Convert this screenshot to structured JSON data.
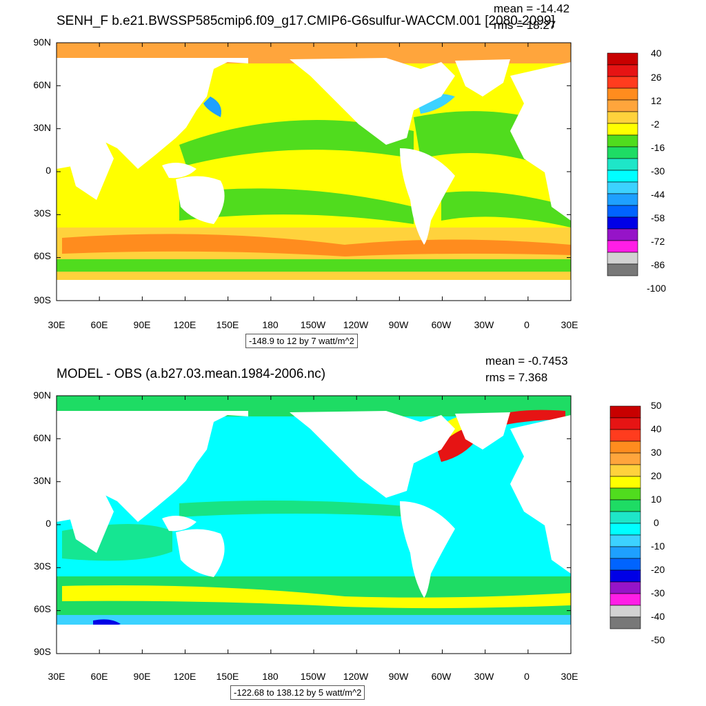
{
  "panels": [
    {
      "title": "SENH_F b.e21.BWSSP585cmip6.f09_g17.CMIP6-G6sulfur-WACCM.001 [2080-2099]",
      "mean_text": "mean = -14.42",
      "rms_text": "rms = 18.27",
      "info_text": "-148.9 to 12 by 7 watt/m^2",
      "lat_ticks": [
        "90N",
        "60N",
        "30N",
        "0",
        "30S",
        "60S",
        "90S"
      ],
      "lon_ticks": [
        "30E",
        "60E",
        "90E",
        "120E",
        "150E",
        "180",
        "150W",
        "120W",
        "90W",
        "60W",
        "30W",
        "0",
        "30E"
      ],
      "colorbar_labels": [
        "40",
        "26",
        "12",
        "-2",
        "-16",
        "-30",
        "-44",
        "-58",
        "-72",
        "-86",
        "-100"
      ],
      "colorbar_colors": [
        "#c80000",
        "#e61414",
        "#ff3c1e",
        "#ff8c1e",
        "#ffa53c",
        "#ffd23c",
        "#ffff00",
        "#50dc1e",
        "#1edc64",
        "#1ee6c8",
        "#00ffff",
        "#3cd2ff",
        "#1ea0ff",
        "#0064ff",
        "#0000e6",
        "#9614c8",
        "#ff1ee6",
        "#d2d2d2",
        "#787878"
      ]
    },
    {
      "title": "MODEL - OBS (a.b27.03.mean.1984-2006.nc)",
      "mean_text": "mean = -0.7453",
      "rms_text": "rms = 7.368",
      "info_text": "-122.68 to 138.12 by 5 watt/m^2",
      "lat_ticks": [
        "90N",
        "60N",
        "30N",
        "0",
        "30S",
        "60S",
        "90S"
      ],
      "lon_ticks": [
        "30E",
        "60E",
        "90E",
        "120E",
        "150E",
        "180",
        "150W",
        "120W",
        "90W",
        "60W",
        "30W",
        "0",
        "30E"
      ],
      "colorbar_labels": [
        "50",
        "40",
        "30",
        "20",
        "10",
        "0",
        "-10",
        "-20",
        "-30",
        "-40",
        "-50"
      ],
      "colorbar_colors": [
        "#c80000",
        "#e61414",
        "#ff3c1e",
        "#ff8c1e",
        "#ffa53c",
        "#ffd23c",
        "#ffff00",
        "#50dc1e",
        "#1edc64",
        "#1ee6c8",
        "#00ffff",
        "#3cd2ff",
        "#1ea0ff",
        "#0064ff",
        "#0000e6",
        "#9614c8",
        "#ff1ee6",
        "#d2d2d2",
        "#787878"
      ]
    }
  ],
  "map_colors": {
    "land": "#ffffff",
    "p1_base": "#ffff00",
    "p1_arctic": "#ffa53c",
    "p1_green": "#50dc1e",
    "p1_orange": "#ffd23c",
    "p1_deep": "#ff8c1e",
    "p2_base": "#00ffff",
    "p2_green": "#1edc64",
    "p2_yellow": "#ffff00",
    "p2_red": "#e61414"
  }
}
